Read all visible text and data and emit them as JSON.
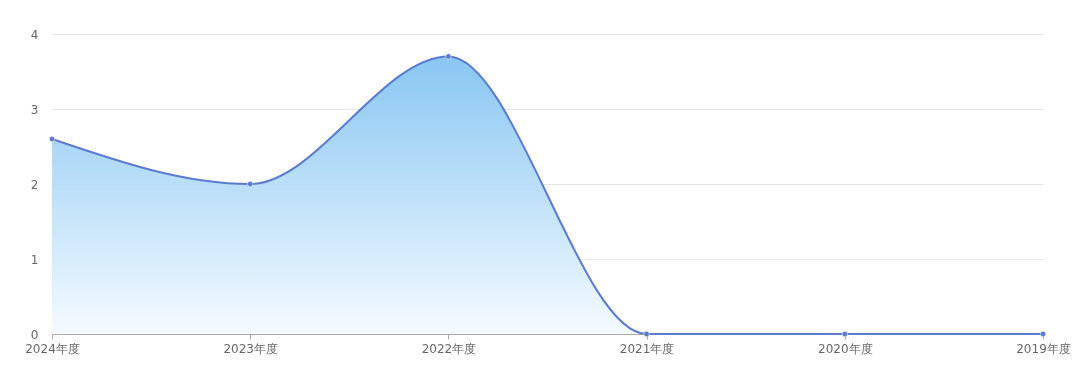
{
  "chart_data": {
    "type": "area",
    "categories": [
      "2024年度",
      "2023年度",
      "2022年度",
      "2021年度",
      "2020年度",
      "2019年度"
    ],
    "series": [
      {
        "color": "#5b7bd0",
        "values": [
          2.6,
          2.0,
          3.7,
          0,
          0,
          0
        ]
      }
    ],
    "ylim": [
      0,
      4
    ],
    "yticks": [
      0,
      1,
      2,
      3,
      4
    ],
    "grid": "y",
    "marker": "circle"
  }
}
